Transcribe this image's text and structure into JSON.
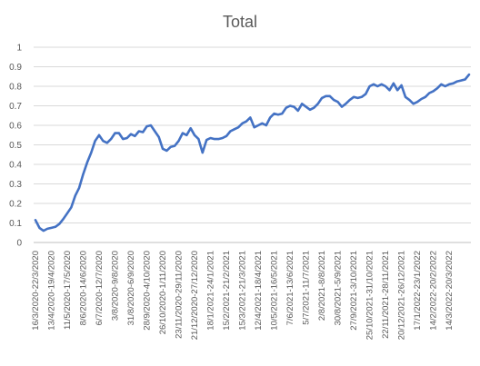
{
  "chart_data": {
    "type": "line",
    "title": "Total",
    "xlabel": "",
    "ylabel": "",
    "ylim": [
      0,
      1
    ],
    "yticks": [
      "0",
      "0.1",
      "0.2",
      "0.3",
      "0.4",
      "0.5",
      "0.6",
      "0.7",
      "0.8",
      "0.9",
      "1"
    ],
    "grid": true,
    "legend": "none",
    "series_color": "#4472c4",
    "x_tick_labels": [
      "16/3/2020-22/3/2020",
      "13/4/2020-19/4/2020",
      "11/5/2020-17/5/2020",
      "8/6/2020-14/6/2020",
      "6/7/2020-12/7/2020",
      "3/8/2020-9/8/2020",
      "31/8/2020-6/9/2020",
      "28/9/2020-4/10/2020",
      "26/10/2020-1/11/2020",
      "23/11/2020-29/11/2020",
      "21/12/2020-27/12/2020",
      "18/1/2021-24/1/2021",
      "15/2/2021-21/2/2021",
      "15/3/2021-21/3/2021",
      "12/4/2021-18/4/2021",
      "10/5/2021-16/5/2021",
      "7/6/2021-13/6/2021",
      "5/7/2021-11/7/2021",
      "2/8/2021-8/8/2021",
      "30/8/2021-5/9/2021",
      "27/9/2021-3/10/2021",
      "25/10/2021-31/10/2021",
      "22/11/2021-28/11/2021",
      "20/12/2021-26/12/2021",
      "17/1/2022-23/1/2022",
      "14/2/2022-20/2/2022",
      "14/3/2022-20/3/2022"
    ],
    "x_tick_interval_weeks": 4,
    "values": [
      0.115,
      0.075,
      0.06,
      0.07,
      0.075,
      0.08,
      0.095,
      0.12,
      0.15,
      0.18,
      0.24,
      0.28,
      0.35,
      0.41,
      0.46,
      0.52,
      0.55,
      0.52,
      0.51,
      0.53,
      0.56,
      0.56,
      0.53,
      0.535,
      0.555,
      0.545,
      0.57,
      0.565,
      0.595,
      0.6,
      0.57,
      0.54,
      0.48,
      0.47,
      0.49,
      0.495,
      0.52,
      0.56,
      0.55,
      0.585,
      0.55,
      0.53,
      0.46,
      0.525,
      0.535,
      0.53,
      0.53,
      0.535,
      0.545,
      0.57,
      0.58,
      0.59,
      0.61,
      0.62,
      0.64,
      0.59,
      0.6,
      0.61,
      0.6,
      0.64,
      0.66,
      0.655,
      0.66,
      0.69,
      0.7,
      0.695,
      0.675,
      0.71,
      0.695,
      0.68,
      0.69,
      0.71,
      0.74,
      0.75,
      0.75,
      0.73,
      0.72,
      0.695,
      0.71,
      0.73,
      0.745,
      0.74,
      0.745,
      0.76,
      0.8,
      0.81,
      0.8,
      0.81,
      0.8,
      0.78,
      0.815,
      0.78,
      0.805,
      0.745,
      0.73,
      0.71,
      0.72,
      0.735,
      0.745,
      0.765,
      0.775,
      0.79,
      0.81,
      0.8,
      0.81,
      0.815,
      0.825,
      0.83,
      0.835,
      0.86
    ]
  }
}
